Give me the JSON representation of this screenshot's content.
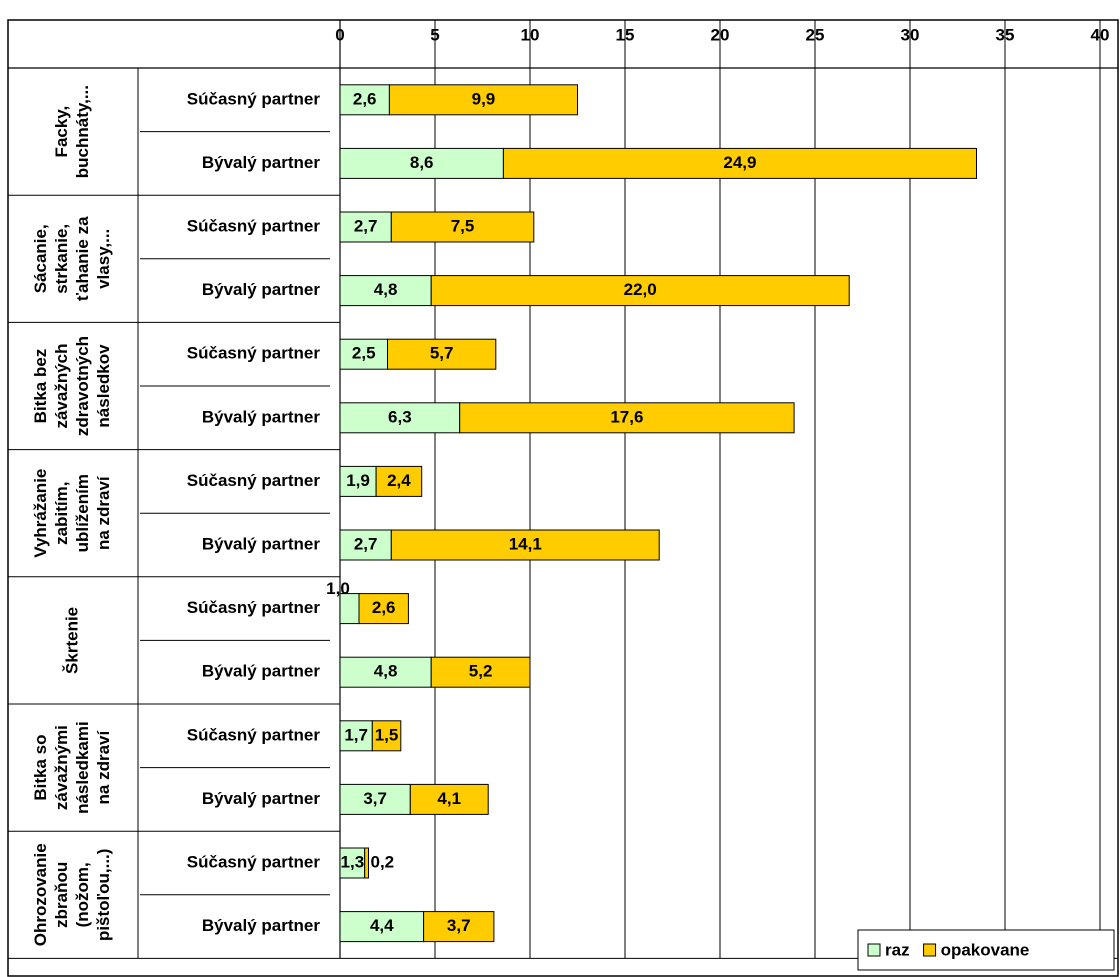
{
  "chart_data": {
    "type": "bar",
    "orientation": "horizontal",
    "stacked": true,
    "groups": [
      {
        "label": [
          "Facky,",
          "buchnáty,..."
        ]
      },
      {
        "label": [
          "Sácanie,",
          "strkanie,",
          "ťahanie za",
          "vlasy,..."
        ]
      },
      {
        "label": [
          "Bitka bez",
          "závažných",
          "zdravotných",
          "následkov"
        ]
      },
      {
        "label": [
          "Vyhrážanie",
          "zabitím,",
          "ublížením",
          "na zdraví"
        ]
      },
      {
        "label": [
          "Škrtenie"
        ]
      },
      {
        "label": [
          "Bitka so",
          "závažnými",
          "následkami",
          "na zdraví"
        ]
      },
      {
        "label": [
          "Ohrozovanie",
          "zbraňou",
          "(nožom,",
          "pištoľou,...)"
        ]
      }
    ],
    "categories": [
      "Súčasný partner",
      "Bývalý partner",
      "Súčasný partner",
      "Bývalý partner",
      "Súčasný partner",
      "Bývalý partner",
      "Súčasný partner",
      "Bývalý partner",
      "Súčasný partner",
      "Bývalý partner",
      "Súčasný partner",
      "Bývalý partner",
      "Súčasný partner",
      "Bývalý partner"
    ],
    "series": [
      {
        "name": "raz",
        "color": "#ccffcc",
        "values": [
          2.6,
          8.6,
          2.7,
          4.8,
          2.5,
          6.3,
          1.9,
          2.7,
          1.0,
          4.8,
          1.7,
          3.7,
          1.3,
          4.4
        ],
        "value_labels": [
          "2,6",
          "8,6",
          "2,7",
          "4,8",
          "2,5",
          "6,3",
          "1,9",
          "2,7",
          "1,0",
          "4,8",
          "1,7",
          "3,7",
          "1,3",
          "4,4"
        ]
      },
      {
        "name": "opakovane",
        "color": "#ffcc00",
        "values": [
          9.9,
          24.9,
          7.5,
          22.0,
          5.7,
          17.6,
          2.4,
          14.1,
          2.6,
          5.2,
          1.5,
          4.1,
          0.2,
          3.7
        ],
        "value_labels": [
          "9,9",
          "24,9",
          "7,5",
          "22,0",
          "5,7",
          "17,6",
          "2,4",
          "14,1",
          "2,6",
          "5,2",
          "1,5",
          "4,1",
          "0,2",
          "3,7"
        ]
      }
    ],
    "xlim": [
      0,
      40
    ],
    "xticks": [
      0,
      5,
      10,
      15,
      20,
      25,
      30,
      35,
      40
    ],
    "grid": true,
    "legend": "lower right"
  }
}
